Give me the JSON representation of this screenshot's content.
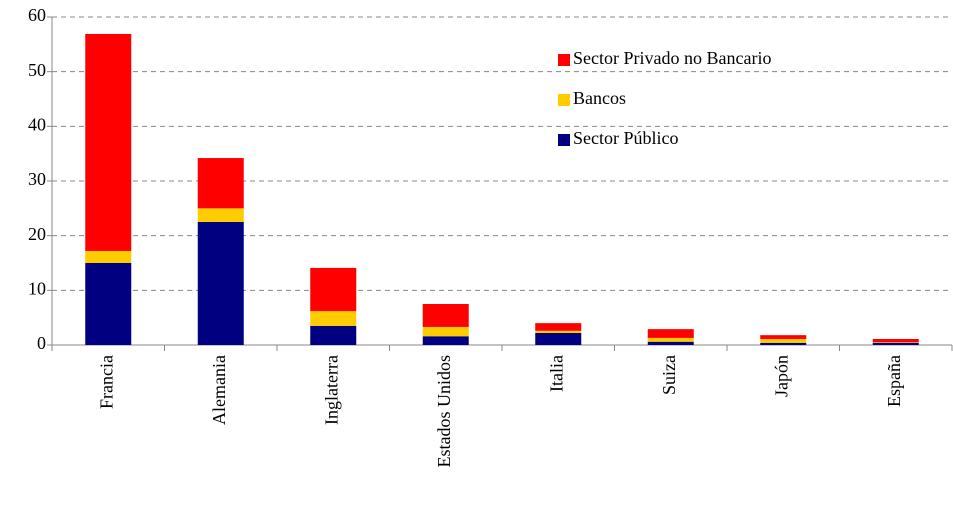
{
  "chart_data": {
    "type": "stacked_bar",
    "categories": [
      "Francia",
      "Alemania",
      "Inglaterra",
      "Estados Unidos",
      "Italia",
      "Suiza",
      "Japón",
      "España"
    ],
    "series": [
      {
        "name": "Sector Público",
        "color": "#000080",
        "values": [
          15.0,
          22.5,
          3.5,
          1.6,
          2.2,
          0.6,
          0.4,
          0.4
        ]
      },
      {
        "name": "Bancos",
        "color": "#ffcc00",
        "values": [
          2.2,
          2.5,
          2.7,
          1.7,
          0.4,
          0.7,
          0.7,
          0.1
        ]
      },
      {
        "name": "Sector Privado no Bancario",
        "color": "#ff0000",
        "values": [
          39.7,
          9.2,
          7.9,
          4.2,
          1.4,
          1.6,
          0.7,
          0.6
        ]
      }
    ],
    "ylim": [
      0,
      60
    ],
    "yticks": [
      0,
      10,
      20,
      30,
      40,
      50,
      60
    ],
    "grid": true
  }
}
